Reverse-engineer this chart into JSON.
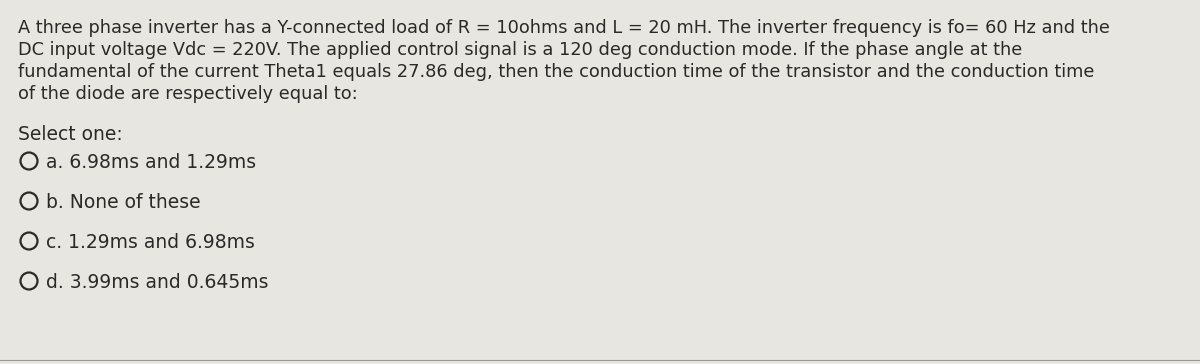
{
  "background_color": "#e8e6e1",
  "question_text_lines": [
    "A three phase inverter has a Y-connected load of R = 10ohms and L = 20 mH. The inverter frequency is fo= 60 Hz and the",
    "DC input voltage Vdc = 220V. The applied control signal is a 120 deg conduction mode. If the phase angle at the",
    "fundamental of the current Theta1 equals 27.86 deg, then the conduction time of the transistor and the conduction time",
    "of the diode are respectively equal to:"
  ],
  "select_one_text": "Select one:",
  "options": [
    "a. 6.98ms and 1.29ms",
    "b. None of these",
    "c. 1.29ms and 6.98ms",
    "d. 3.99ms and 0.645ms"
  ],
  "text_color": "#2a2a2a",
  "circle_edge_color": "#2a2a2a",
  "question_fontsize": 12.8,
  "option_fontsize": 13.5,
  "select_fontsize": 13.5,
  "bottom_line_color": "#999999"
}
